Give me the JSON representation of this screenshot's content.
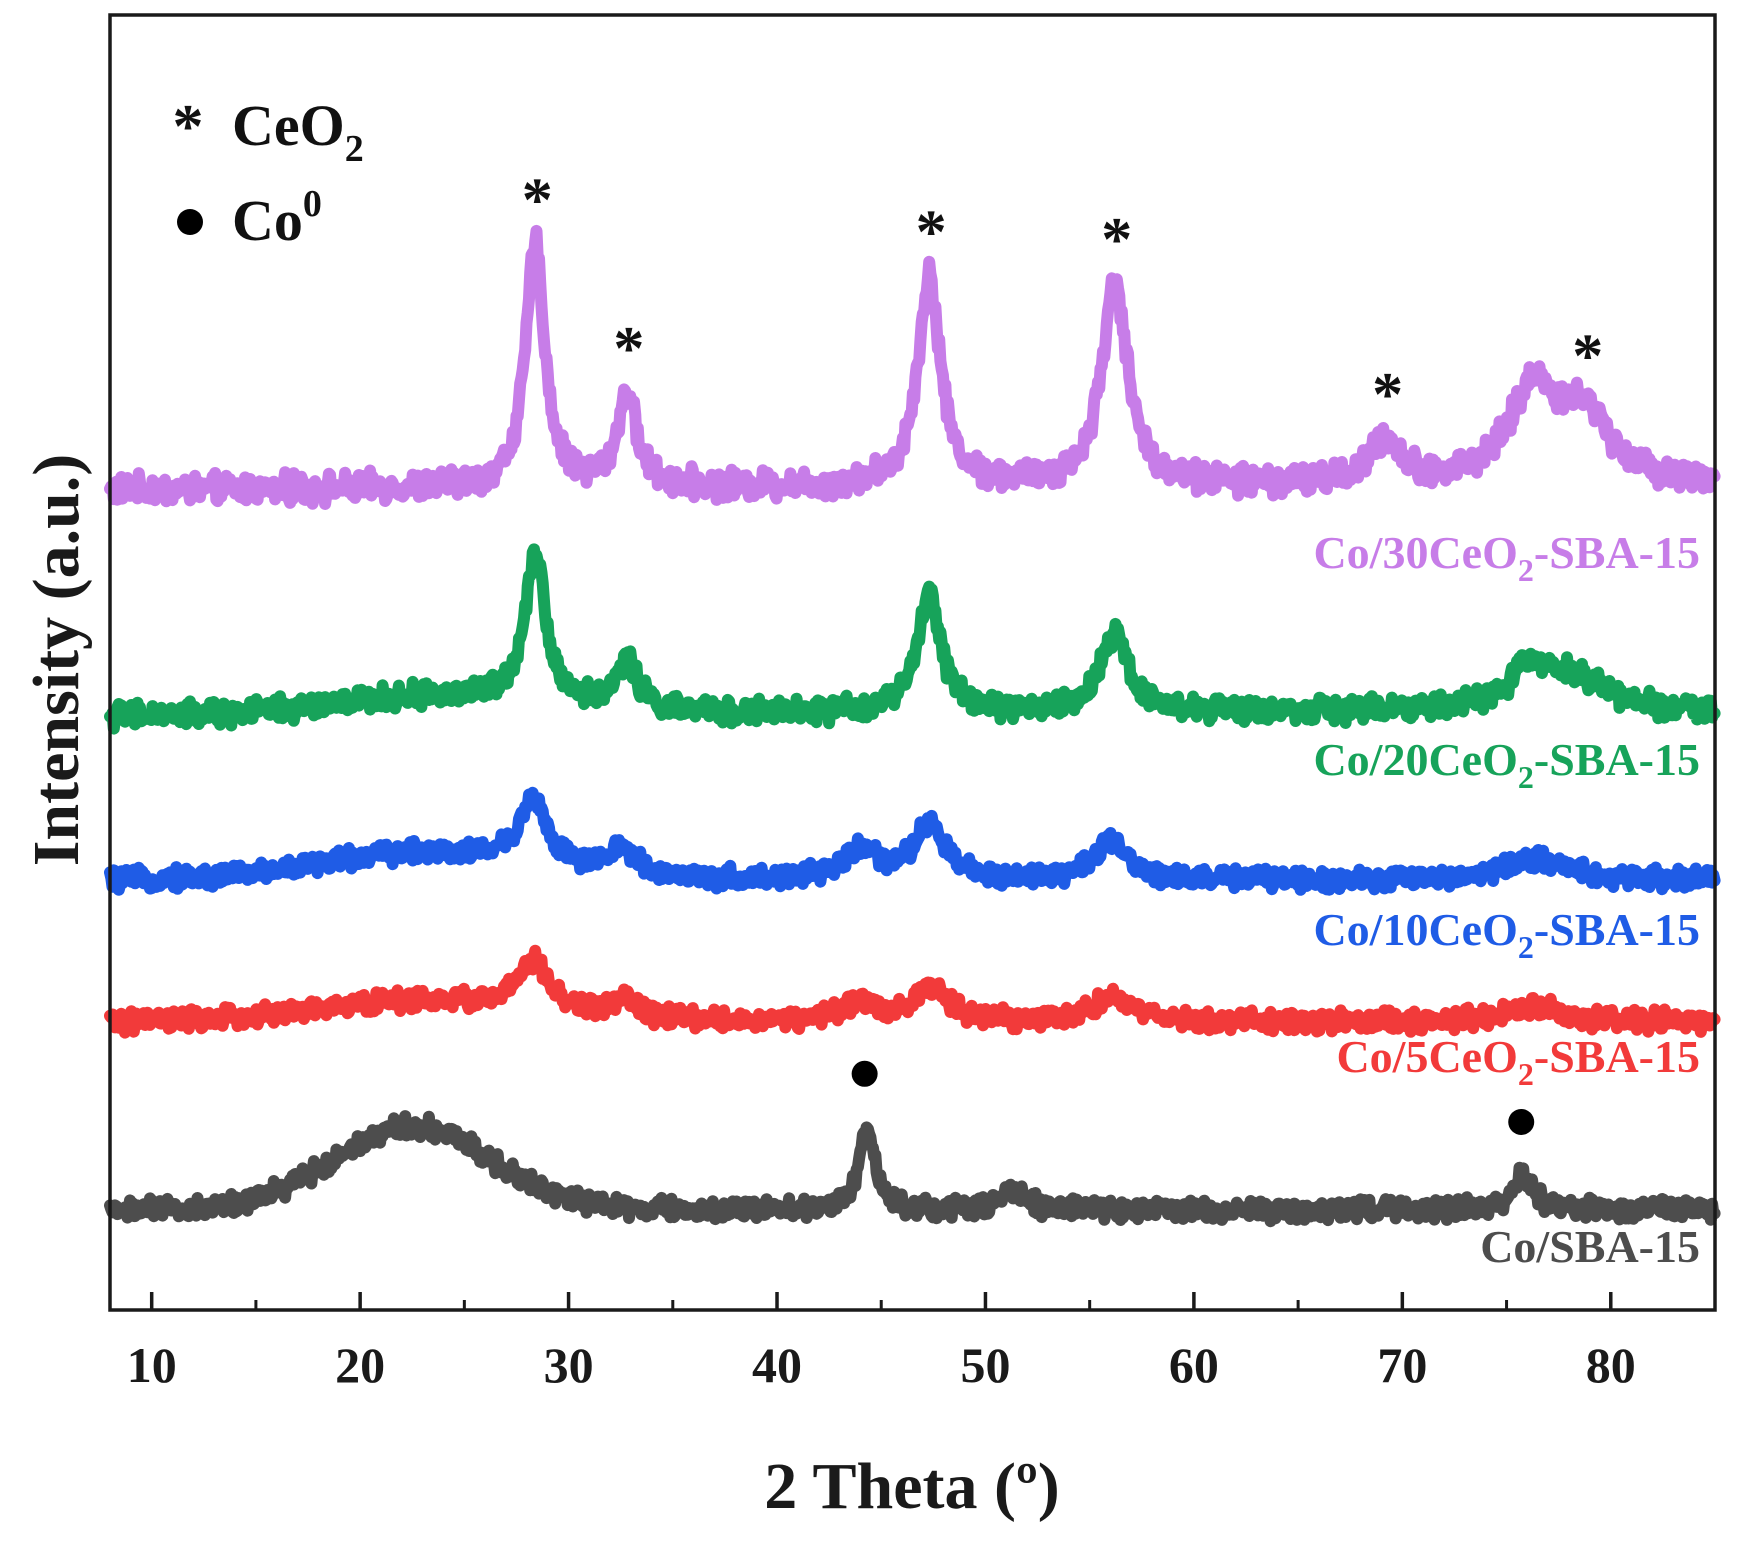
{
  "chart_data": {
    "type": "line",
    "title": "",
    "xlabel": "2 Theta (º)",
    "ylabel": "Intensity (a.u.)",
    "xlim": [
      8,
      85
    ],
    "xticks": [
      10,
      20,
      30,
      40,
      50,
      60,
      70,
      80
    ],
    "grid": false,
    "legend": {
      "position": "top-left",
      "items": [
        {
          "symbol": "*",
          "icon": "asterisk-icon",
          "text": "CeO",
          "sub": "2"
        },
        {
          "symbol": "●",
          "icon": "filled-circle-icon",
          "text": "Co",
          "sup": "0"
        }
      ]
    },
    "series": [
      {
        "name": "Co/30CeO2-SBA-15",
        "label_main": "Co/30CeO",
        "label_sub": "2",
        "label_tail": "-SBA-15",
        "color": "#c77de8",
        "baseline": 10,
        "slope": 0.02,
        "bumps": [],
        "peaks": [
          [
            28.4,
            58,
            0.55
          ],
          [
            32.8,
            22,
            0.55
          ],
          [
            47.3,
            50,
            0.65
          ],
          [
            56.2,
            48,
            0.75
          ],
          [
            69.2,
            10,
            0.9
          ],
          [
            76.3,
            22,
            1.4
          ],
          [
            78.8,
            15,
            1.4
          ]
        ]
      },
      {
        "name": "Co/20CeO2-SBA-15",
        "label_main": "Co/20CeO",
        "label_sub": "2",
        "label_tail": "-SBA-15",
        "color": "#17a35a",
        "baseline": 9,
        "slope": 0.02,
        "bumps": [
          [
            24,
            5,
            5
          ]
        ],
        "peaks": [
          [
            28.4,
            42,
            0.6
          ],
          [
            32.8,
            14,
            0.6
          ],
          [
            47.3,
            32,
            0.7
          ],
          [
            56.2,
            22,
            0.8
          ],
          [
            76.3,
            12,
            1.5
          ],
          [
            78.5,
            7,
            1.5
          ]
        ]
      },
      {
        "name": "Co/10CeO2-SBA-15",
        "label_main": "Co/10CeO",
        "label_sub": "2",
        "label_tail": "-SBA-15",
        "color": "#1f5ce6",
        "baseline": 9,
        "slope": 0.0,
        "bumps": [
          [
            23,
            9,
            5
          ]
        ],
        "peaks": [
          [
            28.3,
            22,
            0.8
          ],
          [
            32.6,
            9,
            0.8
          ],
          [
            44.0,
            10,
            0.9
          ],
          [
            47.3,
            18,
            0.9
          ],
          [
            56.0,
            12,
            1.0
          ],
          [
            76.3,
            7,
            1.6
          ]
        ]
      },
      {
        "name": "Co/5CeO2-SBA-15",
        "label_main": "Co/5CeO",
        "label_sub": "2",
        "label_tail": "-SBA-15",
        "color": "#f23a3a",
        "baseline": 9,
        "slope": 0.0,
        "bumps": [
          [
            23,
            7,
            5
          ]
        ],
        "peaks": [
          [
            28.3,
            16,
            0.9
          ],
          [
            32.6,
            6,
            0.9
          ],
          [
            44.0,
            6,
            1.0
          ],
          [
            47.3,
            11,
            1.0
          ],
          [
            56.0,
            8,
            1.1
          ],
          [
            76.3,
            5,
            1.6
          ]
        ]
      },
      {
        "name": "Co/SBA-15",
        "label_main": "Co/SBA-15",
        "label_sub": "",
        "label_tail": "",
        "color": "#4d4d4d",
        "baseline": 10,
        "slope": 0.0,
        "bumps": [
          [
            22.5,
            28,
            3.8
          ]
        ],
        "peaks": [
          [
            44.3,
            28,
            0.45
          ],
          [
            51.3,
            6,
            0.7
          ],
          [
            75.8,
            12,
            0.55
          ]
        ]
      }
    ],
    "annotations": [
      {
        "symbol": "*",
        "x": 28.4,
        "series": "Co/30CeO2-SBA-15"
      },
      {
        "symbol": "*",
        "x": 32.8,
        "series": "Co/30CeO2-SBA-15"
      },
      {
        "symbol": "*",
        "x": 47.3,
        "series": "Co/30CeO2-SBA-15"
      },
      {
        "symbol": "*",
        "x": 56.2,
        "series": "Co/30CeO2-SBA-15"
      },
      {
        "symbol": "*",
        "x": 69.2,
        "series": "Co/30CeO2-SBA-15"
      },
      {
        "symbol": "*",
        "x": 78.8,
        "series": "Co/30CeO2-SBA-15"
      },
      {
        "symbol": "●",
        "x": 44.3,
        "series": "Co/SBA-15"
      },
      {
        "symbol": "●",
        "x": 75.8,
        "series": "Co/SBA-15"
      }
    ]
  }
}
